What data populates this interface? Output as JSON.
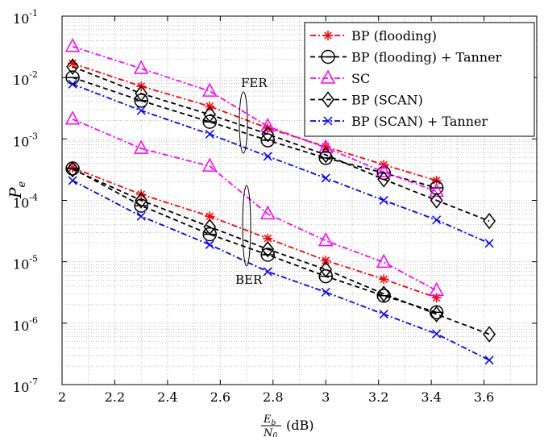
{
  "chart_data": {
    "type": "line",
    "title": "",
    "xlabel_math": {
      "numerator_main": "E",
      "numerator_sub": "b",
      "denominator_main": "N",
      "denominator_sub": "0",
      "unit": "(dB)"
    },
    "ylabel_main": "P",
    "ylabel_sub": "e",
    "x_ticks": [
      "2",
      "2.2",
      "2.4",
      "2.6",
      "2.8",
      "3",
      "3.2",
      "3.4",
      "3.6"
    ],
    "xlim": [
      2.0,
      3.8
    ],
    "y_scale": "log",
    "ylim": [
      1e-07,
      0.1
    ],
    "y_tick_bases": [
      "10",
      "10",
      "10",
      "10",
      "10",
      "10",
      "10"
    ],
    "y_tick_exps": [
      "-7",
      "-6",
      "-5",
      "-4",
      "-3",
      "-2",
      "-1"
    ],
    "grid": true,
    "legend_placement": "top-right",
    "annotations": [
      "FER",
      "BER"
    ],
    "series": [
      {
        "name": "BP (flooding)",
        "color": "#ff0000",
        "marker": "asterisk",
        "dash": "dashdot",
        "groups": [
          {
            "x": [
              2.04,
              2.3,
              2.56,
              2.78,
              3.0,
              3.22,
              3.42
            ],
            "y": [
              0.017,
              0.0072,
              0.0034,
              0.0015,
              0.00075,
              0.00038,
              0.00021
            ]
          },
          {
            "x": [
              2.04,
              2.3,
              2.56,
              2.78,
              3.0,
              3.22,
              3.42
            ],
            "y": [
              0.00034,
              0.000125,
              5.5e-05,
              2.4e-05,
              1.05e-05,
              5.2e-06,
              2.6e-06
            ]
          }
        ]
      },
      {
        "name": "BP (flooding) + Tanner",
        "color": "#000000",
        "marker": "circle-dash",
        "dash": "dash",
        "groups": [
          {
            "x": [
              2.04,
              2.3,
              2.56,
              2.78,
              3.0,
              3.22,
              3.42
            ],
            "y": [
              0.01,
              0.0042,
              0.0019,
              0.00095,
              0.00049,
              0.00028,
              0.00016
            ]
          },
          {
            "x": [
              2.04,
              2.3,
              2.56,
              2.78,
              3.0,
              3.22,
              3.42
            ],
            "y": [
              0.00033,
              8.2e-05,
              2.8e-05,
              1.3e-05,
              5.8e-06,
              2.8e-06,
              1.5e-06
            ]
          }
        ]
      },
      {
        "name": "SC",
        "color": "#ff00ff",
        "marker": "triangle",
        "dash": "dashdot",
        "groups": [
          {
            "x": [
              2.04,
              2.3,
              2.56,
              2.78,
              3.0,
              3.22,
              3.42
            ],
            "y": [
              0.032,
              0.014,
              0.006,
              0.0016,
              0.00072,
              0.00029,
              0.00014
            ]
          },
          {
            "x": [
              2.04,
              2.3,
              2.56,
              2.78,
              3.0,
              3.22,
              3.42
            ],
            "y": [
              0.0021,
              0.0007,
              0.00036,
              6e-05,
              2.2e-05,
              9.8e-06,
              3.4e-06
            ]
          }
        ]
      },
      {
        "name": "BP (SCAN)",
        "color": "#000000",
        "marker": "diamond",
        "dash": "dash",
        "groups": [
          {
            "x": [
              2.04,
              2.3,
              2.56,
              2.78,
              3.0,
              3.22,
              3.42,
              3.62
            ],
            "y": [
              0.015,
              0.0055,
              0.0025,
              0.0012,
              0.00055,
              0.00022,
              0.0001,
              4.6e-05
            ]
          },
          {
            "x": [
              2.04,
              2.3,
              2.56,
              2.78,
              3.0,
              3.22,
              3.42,
              3.62
            ],
            "y": [
              0.00032,
              0.0001,
              3.7e-05,
              1.6e-05,
              7.5e-06,
              3e-06,
              1.4e-06,
              6.6e-07
            ]
          }
        ]
      },
      {
        "name": "BP (SCAN) + Tanner",
        "color": "#0000ff",
        "marker": "x",
        "dash": "dashdot",
        "groups": [
          {
            "x": [
              2.04,
              2.3,
              2.56,
              2.78,
              3.0,
              3.22,
              3.42,
              3.62
            ],
            "y": [
              0.0078,
              0.0029,
              0.0012,
              0.00052,
              0.00023,
              0.0001,
              4.8e-05,
              2e-05
            ]
          },
          {
            "x": [
              2.04,
              2.3,
              2.56,
              2.78,
              3.0,
              3.22,
              3.42,
              3.62
            ],
            "y": [
              0.00021,
              5.5e-05,
              1.9e-05,
              6.9e-06,
              3.2e-06,
              1.4e-06,
              6.7e-07,
              2.5e-07
            ]
          }
        ]
      }
    ]
  }
}
